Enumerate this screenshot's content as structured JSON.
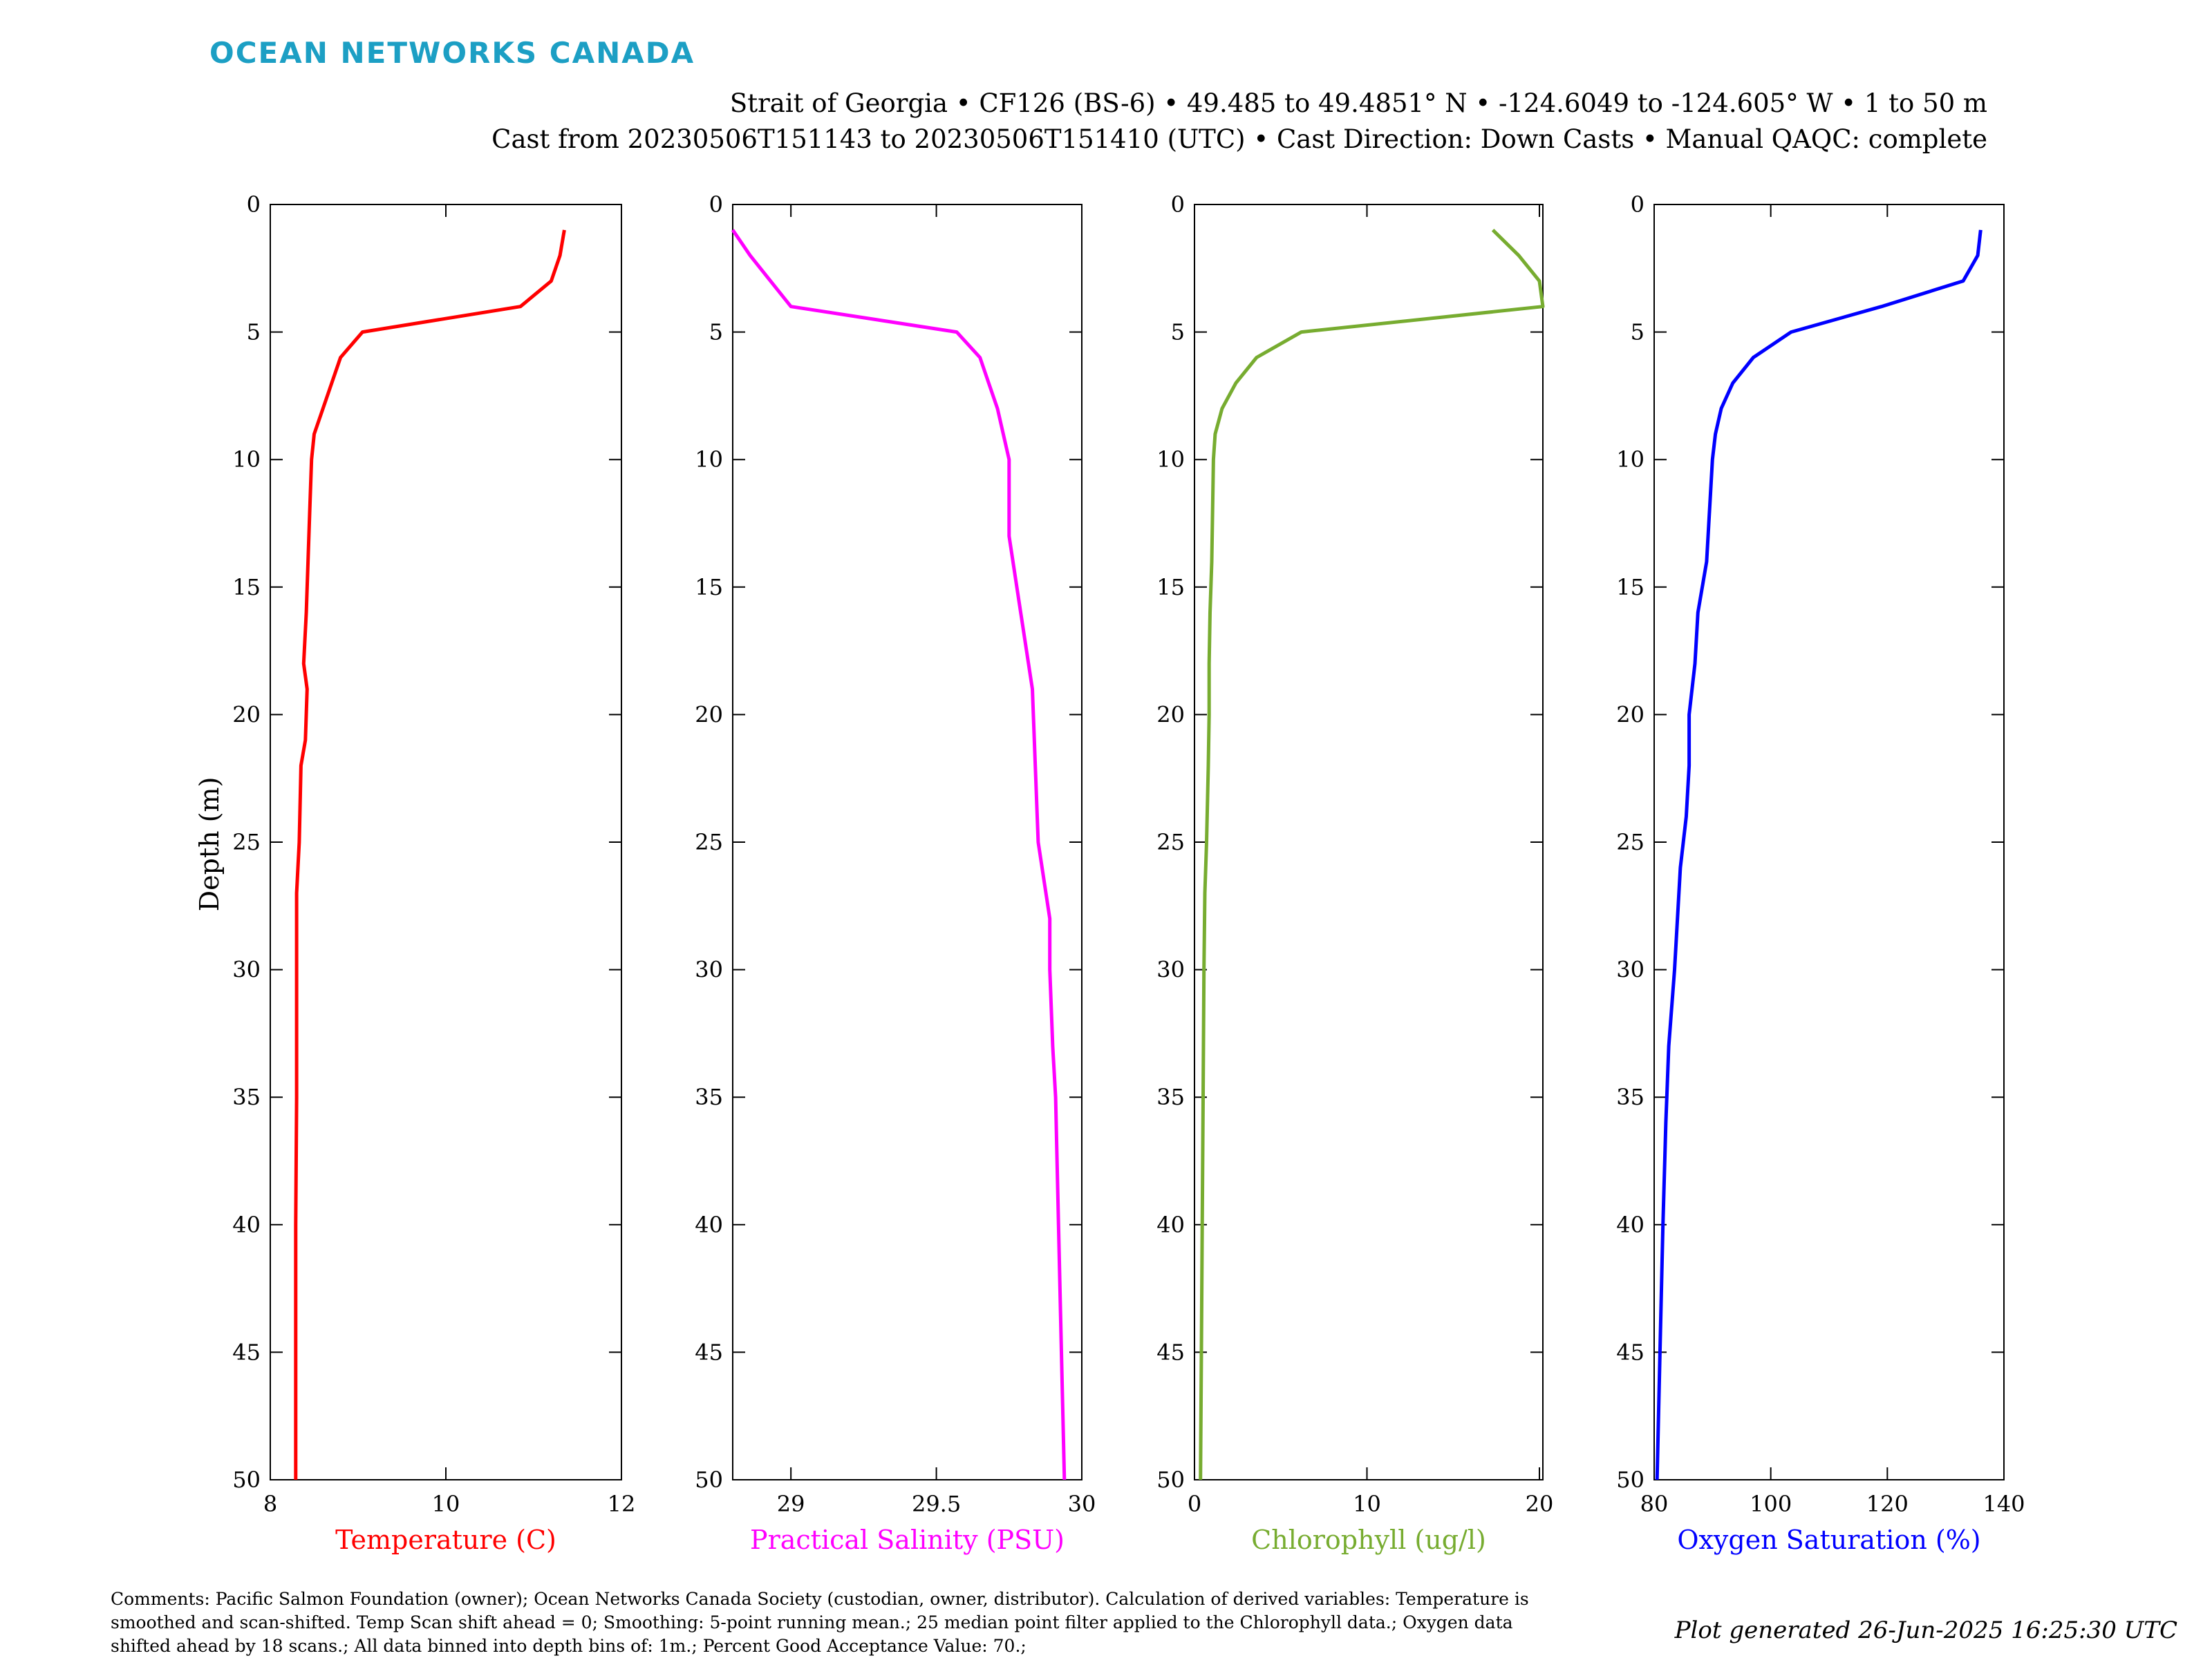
{
  "brand": "OCEAN NETWORKS CANADA",
  "header": {
    "line1": "Strait of Georgia • CF126 (BS-6) • 49.485 to 49.4851° N • -124.6049 to -124.605° W • 1 to 50 m",
    "line2": "Cast from 20230506T151143 to 20230506T151410 (UTC) • Cast Direction: Down Casts • Manual QAQC: complete"
  },
  "comments": "Comments: Pacific Salmon Foundation (owner); Ocean Networks Canada Society (custodian, owner, distributor). Calculation of derived variables: Temperature is smoothed and scan-shifted. Temp Scan shift ahead = 0; Smoothing: 5-point running mean.; 25 median point filter applied to the Chlorophyll data.; Oxygen data shifted ahead by 18 scans.; All data binned into depth bins of: 1m.; Percent Good Acceptance Value: 70.;",
  "generated": "Plot generated 26-Jun-2025 16:25:30 UTC",
  "chart_data": {
    "type": "line",
    "ylabel": "Depth (m)",
    "ylim": [
      0,
      50
    ],
    "y_reversed": true,
    "yticks": [
      "0",
      "5",
      "10",
      "15",
      "20",
      "25",
      "30",
      "35",
      "40",
      "45",
      "50"
    ],
    "panels": [
      {
        "xlabel": "Temperature (C)",
        "color": "#ff0000",
        "xlim": [
          8,
          12
        ],
        "xticks": [
          8,
          10,
          12
        ],
        "xtick_labels": [
          "8",
          "10",
          "12"
        ],
        "depth": [
          1,
          2,
          3,
          4,
          5,
          6,
          7,
          8,
          9,
          10,
          12,
          14,
          16,
          18,
          19,
          21,
          22,
          25,
          27,
          30,
          35,
          40,
          45,
          50
        ],
        "values": [
          11.35,
          11.3,
          11.2,
          10.85,
          9.05,
          8.8,
          8.7,
          8.6,
          8.5,
          8.47,
          8.45,
          8.43,
          8.41,
          8.38,
          8.42,
          8.4,
          8.35,
          8.33,
          8.3,
          8.3,
          8.3,
          8.29,
          8.29,
          8.29
        ]
      },
      {
        "xlabel": "Practical Salinity (PSU)",
        "color": "#ff00ff",
        "xlim": [
          28.8,
          30
        ],
        "xticks": [
          29,
          29.5,
          30
        ],
        "xtick_labels": [
          "29",
          "29.5",
          "30"
        ],
        "depth": [
          1,
          2,
          3,
          4,
          5,
          6,
          7,
          8,
          9,
          10,
          13,
          16,
          19,
          22,
          25,
          28,
          30,
          33,
          35,
          40,
          45,
          50
        ],
        "values": [
          28.8,
          28.86,
          28.93,
          29.0,
          29.57,
          29.65,
          29.68,
          29.71,
          29.73,
          29.75,
          29.75,
          29.79,
          29.83,
          29.84,
          29.85,
          29.89,
          29.89,
          29.9,
          29.91,
          29.92,
          29.93,
          29.94
        ]
      },
      {
        "xlabel": "Chlorophyll (ug/l)",
        "color": "#77ac30",
        "xlim": [
          0,
          20.2
        ],
        "xticks": [
          0,
          10,
          20
        ],
        "xtick_labels": [
          "0",
          "10",
          "20"
        ],
        "depth": [
          1,
          2,
          3,
          4,
          5,
          6,
          7,
          8,
          9,
          10,
          12,
          14,
          16,
          18,
          20,
          22,
          25,
          27,
          30,
          35,
          40,
          45,
          50
        ],
        "values": [
          17.3,
          18.8,
          20.0,
          20.2,
          6.2,
          3.6,
          2.4,
          1.6,
          1.2,
          1.1,
          1.05,
          1.0,
          0.9,
          0.85,
          0.85,
          0.8,
          0.7,
          0.6,
          0.55,
          0.5,
          0.45,
          0.4,
          0.35
        ]
      },
      {
        "xlabel": "Oxygen Saturation (%)",
        "color": "#0000ff",
        "xlim": [
          80,
          140
        ],
        "xticks": [
          80,
          100,
          120,
          140
        ],
        "xtick_labels": [
          "80",
          "100",
          "120",
          "140"
        ],
        "depth": [
          1,
          2,
          3,
          4,
          5,
          6,
          7,
          8,
          9,
          10,
          12,
          14,
          16,
          18,
          19,
          20,
          22,
          24,
          26,
          28,
          30,
          33,
          36,
          40,
          45,
          50
        ],
        "values": [
          136,
          135.5,
          133,
          119,
          103.5,
          97,
          93.5,
          91.5,
          90.5,
          90,
          89.5,
          89,
          87.5,
          87,
          86.5,
          86,
          86,
          85.5,
          84.5,
          84,
          83.5,
          82.5,
          82,
          81.5,
          81,
          80.5
        ]
      }
    ]
  }
}
